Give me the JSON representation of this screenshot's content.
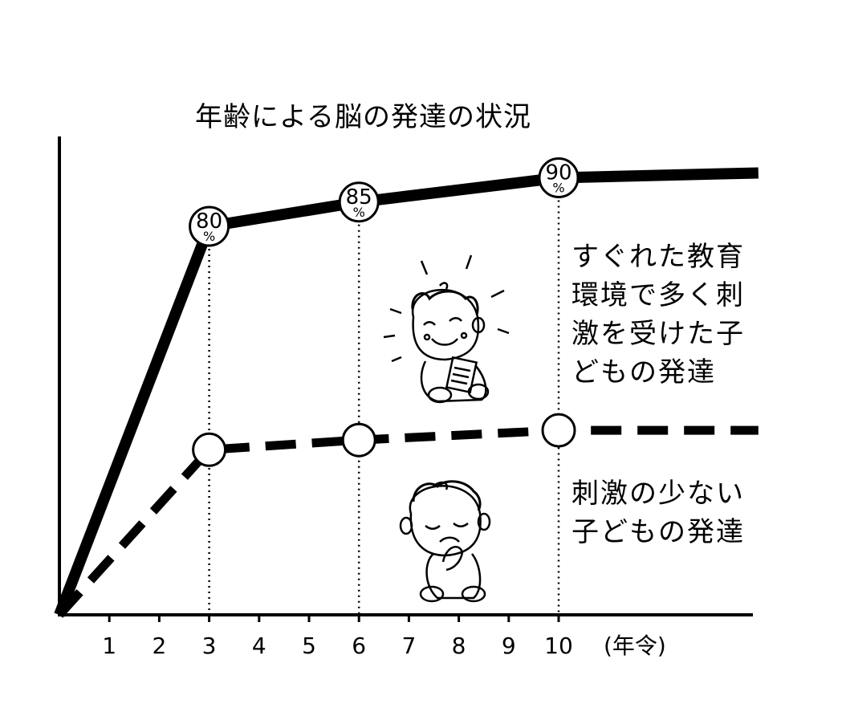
{
  "chart_data": {
    "type": "line",
    "title": "年齢による脳の発達の状況",
    "xlabel": "(年令)",
    "ylabel": "",
    "x_ticks": [
      "1",
      "2",
      "3",
      "4",
      "5",
      "6",
      "7",
      "8",
      "9",
      "10"
    ],
    "xlim": [
      0,
      14
    ],
    "ylim": [
      0,
      115
    ],
    "grid": false,
    "reference_lines_at_x": [
      3,
      6,
      10
    ],
    "series": [
      {
        "name": "すぐれた教育環境で多く刺激を受けた子どもの発達",
        "label_lines": [
          "すぐれた教育",
          "環境で多く刺",
          "激を受けた子",
          "どもの発達"
        ],
        "style": "solid",
        "x": [
          0,
          3,
          6,
          10,
          14
        ],
        "y": [
          0,
          80,
          85,
          90,
          91
        ],
        "marker_labels": [
          {
            "x": 3,
            "num": "80",
            "unit": "%"
          },
          {
            "x": 6,
            "num": "85",
            "unit": "%"
          },
          {
            "x": 10,
            "num": "90",
            "unit": "%"
          }
        ]
      },
      {
        "name": "刺激の少ない子どもの発達",
        "label_lines": [
          "刺激の少ない",
          "子どもの発達"
        ],
        "style": "dashed",
        "x": [
          0,
          3,
          6,
          10,
          14
        ],
        "y": [
          0,
          34,
          36,
          38,
          38
        ],
        "open_markers_at_x": [
          3,
          6,
          10
        ]
      }
    ]
  }
}
